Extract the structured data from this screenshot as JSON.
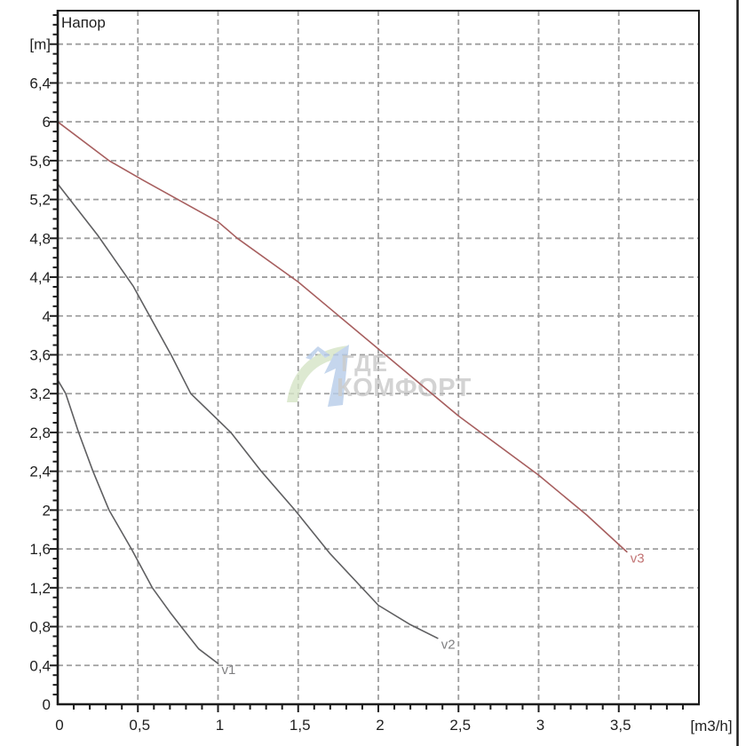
{
  "title": "Напор",
  "y_unit_label": "[m]",
  "x_unit_label": "[m3/h]",
  "watermark": {
    "line1": "ГДЕ",
    "line2": "КОМФОРТ"
  },
  "colors": {
    "axis": "#1c1c1c",
    "grid": "#9e9e9e",
    "tick_label": "#1f1f1f",
    "curve_dark": "#5f5f61",
    "curve_red": "#a75f5f",
    "label_dark": "#7f7f81",
    "label_red": "#c27474",
    "watermark_text": "#bfbfbf",
    "watermark_green": "#d5e4c6",
    "watermark_blue": "#b7cde9",
    "window_border": "#1c1c1c"
  },
  "chart_data": {
    "type": "line",
    "title": "Напор",
    "xlabel": "[m3/h]",
    "ylabel": "[m]",
    "xlim": [
      0,
      4.0
    ],
    "ylim": [
      0,
      7.145
    ],
    "grid": true,
    "legend_position": "none",
    "x_tick_values": [
      0,
      0.5,
      1,
      1.5,
      2,
      2.5,
      3,
      3.5
    ],
    "x_tick_labels": [
      "0",
      "0,5",
      "1",
      "1,5",
      "2",
      "2,5",
      "3",
      "3,5"
    ],
    "y_tick_values": [
      0,
      0.4,
      0.8,
      1.2,
      1.6,
      2,
      2.4,
      2.8,
      3.2,
      3.6,
      4,
      4.4,
      4.8,
      5.2,
      5.6,
      6,
      6.4,
      6.8
    ],
    "y_tick_labels": [
      "0",
      "0,4",
      "0,8",
      "1,2",
      "1,6",
      "2",
      "2,4",
      "2,8",
      "3,2",
      "3,6",
      "4",
      "4,4",
      "4,8",
      "5,2",
      "5,6",
      "6",
      "6,4",
      "[m]"
    ],
    "minor_tick_step": 0.1,
    "series": [
      {
        "name": "v1",
        "color_key": "curve_dark",
        "label_color_key": "label_dark",
        "points": [
          [
            0,
            3.34
          ],
          [
            0.05,
            3.2
          ],
          [
            0.13,
            2.8
          ],
          [
            0.22,
            2.4
          ],
          [
            0.32,
            2.0
          ],
          [
            0.46,
            1.6
          ],
          [
            0.59,
            1.2
          ],
          [
            0.7,
            0.95
          ],
          [
            0.77,
            0.8
          ],
          [
            0.88,
            0.57
          ],
          [
            1.0,
            0.42
          ]
        ]
      },
      {
        "name": "v2",
        "color_key": "curve_dark",
        "label_color_key": "label_dark",
        "points": [
          [
            0,
            5.36
          ],
          [
            0.25,
            4.83
          ],
          [
            0.47,
            4.31
          ],
          [
            0.71,
            3.59
          ],
          [
            0.83,
            3.2
          ],
          [
            1.08,
            2.8
          ],
          [
            1.27,
            2.4
          ],
          [
            1.48,
            2.0
          ],
          [
            1.7,
            1.55
          ],
          [
            2.0,
            1.02
          ],
          [
            2.2,
            0.82
          ],
          [
            2.37,
            0.68
          ]
        ]
      },
      {
        "name": "v3",
        "color_key": "curve_red",
        "label_color_key": "label_red",
        "points": [
          [
            0,
            6.0
          ],
          [
            0.32,
            5.6
          ],
          [
            0.53,
            5.4
          ],
          [
            1.0,
            4.97
          ],
          [
            1.12,
            4.8
          ],
          [
            1.5,
            4.35
          ],
          [
            2.0,
            3.66
          ],
          [
            2.5,
            2.97
          ],
          [
            3.0,
            2.36
          ],
          [
            3.3,
            1.95
          ],
          [
            3.55,
            1.57
          ]
        ]
      }
    ]
  }
}
